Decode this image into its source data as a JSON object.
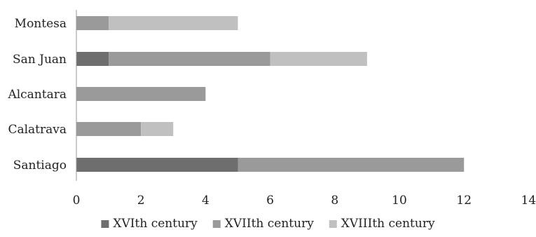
{
  "chart_data": {
    "type": "bar",
    "orientation": "horizontal",
    "stacked": true,
    "categories": [
      "Santiago",
      "Calatrava",
      "Alcantara",
      "San Juan",
      "Montesa"
    ],
    "series": [
      {
        "name": "XVIth century",
        "values": [
          5,
          0,
          0,
          1,
          0
        ],
        "color": "#6e6e6e"
      },
      {
        "name": "XVIIth century",
        "values": [
          7,
          2,
          4,
          5,
          1
        ],
        "color": "#9a9a9a"
      },
      {
        "name": "XVIIIth century",
        "values": [
          0,
          1,
          0,
          3,
          4
        ],
        "color": "#c0c0c0"
      }
    ],
    "xlim": [
      0,
      14
    ],
    "xticks": [
      "0",
      "2",
      "4",
      "6",
      "8",
      "10",
      "12",
      "14"
    ],
    "grid": false,
    "legend_position": "bottom"
  }
}
